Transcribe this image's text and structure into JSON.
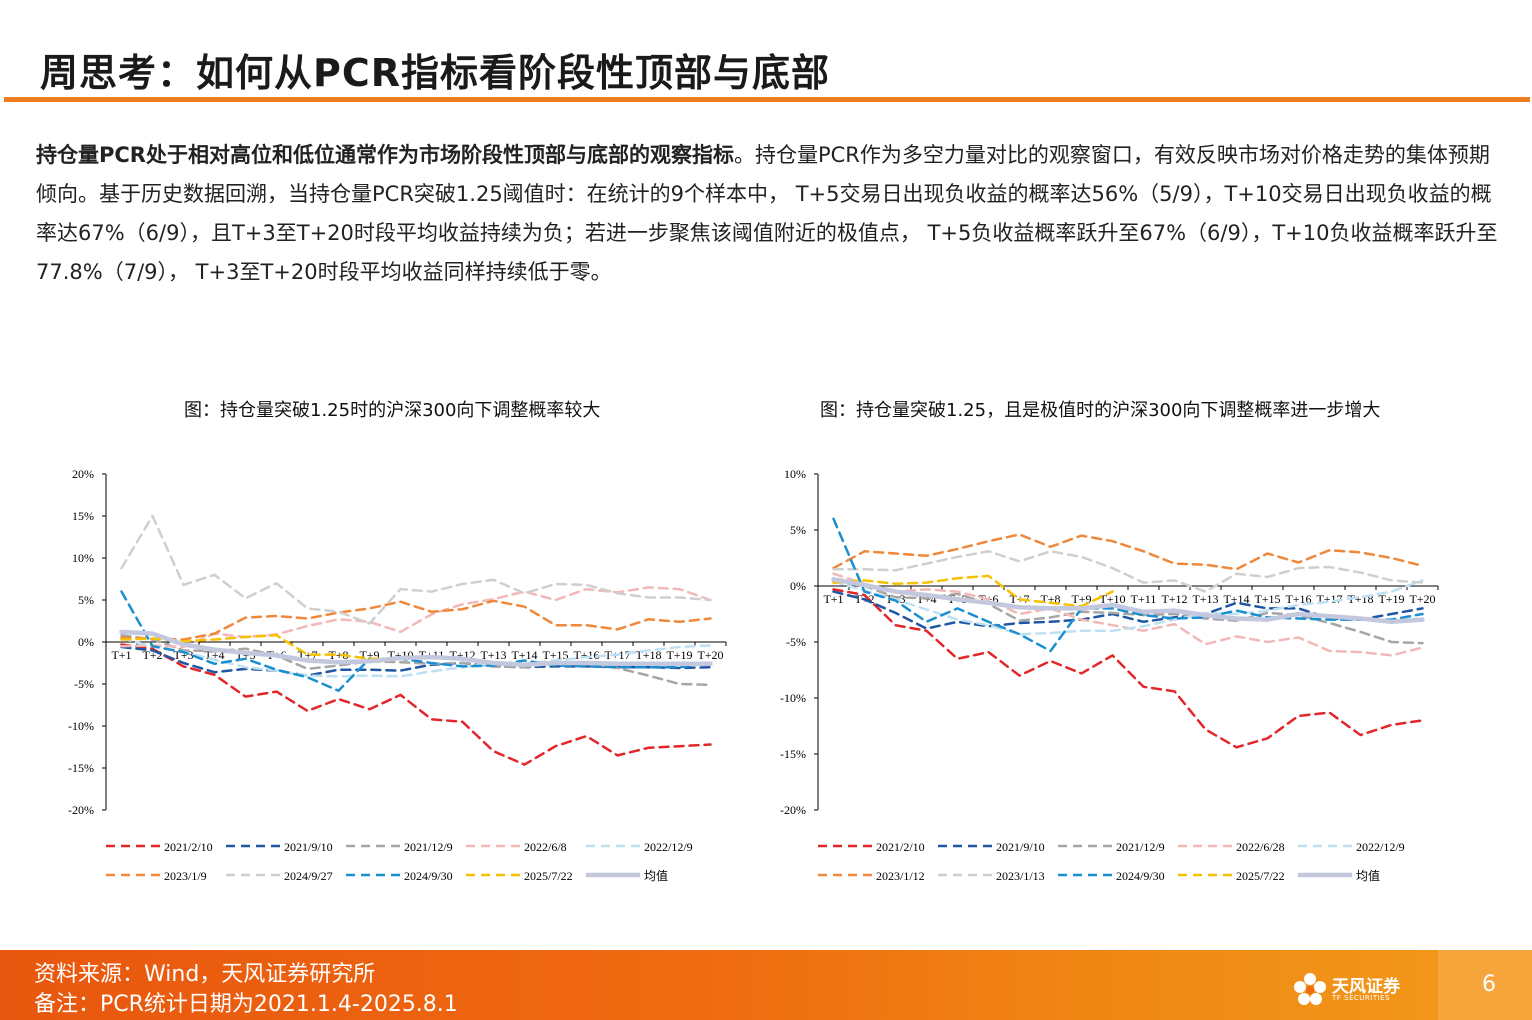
{
  "title": "周思考：如何从PCR指标看阶段性顶部与底部",
  "paragraph": {
    "bold": "持仓量PCR处于相对高位和低位通常作为市场阶段性顶部与底部的观察指标",
    "rest": "。持仓量PCR作为多空力量对比的观察窗口，有效反映市场对价格走势的集体预期倾向。基于历史数据回溯，当持仓量PCR突破1.25阈值时：在统计的9个样本中，  T+5交易日出现负收益的概率达56%（5/9），T+10交易日出现负收益的概率达67%（6/9），且T+3至T+20时段平均收益持续为负；若进一步聚焦该阈值附近的极值点，  T+5负收益概率跃升至67%（6/9），T+10负收益概率跃升至77.8%（7/9），  T+3至T+20时段平均收益同样持续低于零。"
  },
  "footer": {
    "source": "资料来源：Wind，天风证券研究所",
    "note": "备注：PCR统计日期为2021.1.4-2025.8.1",
    "logo_text": "天风证券",
    "logo_sub": "TF SECURITIES",
    "page": "6"
  },
  "chart_data": [
    {
      "type": "line",
      "title": "图：持仓量突破1.25时的沪深300向下调整概率较大",
      "categories": [
        "T+1",
        "T+2",
        "T+3",
        "T+4",
        "T+5",
        "T+6",
        "T+7",
        "T+8",
        "T+9",
        "T+10",
        "T+11",
        "T+12",
        "T+13",
        "T+14",
        "T+15",
        "T+16",
        "T+17",
        "T+18",
        "T+19",
        "T+20"
      ],
      "ylim": [
        -20,
        20
      ],
      "yticks": [
        20,
        15,
        10,
        5,
        0,
        -5,
        -10,
        -15,
        -20
      ],
      "ytick_labels": [
        "20%",
        "15%",
        "10%",
        "5%",
        "0%",
        "-5%",
        "-10%",
        "-15%",
        "-20%"
      ],
      "series": [
        {
          "name": "2021/2/10",
          "color": "#e2262a",
          "dash": "dash",
          "values": [
            -0.3,
            -0.8,
            -2.9,
            -3.9,
            -6.5,
            -5.9,
            -8.2,
            -6.8,
            -8.0,
            -6.3,
            -9.2,
            -9.5,
            -13.0,
            -14.6,
            -12.4,
            -11.2,
            -13.5,
            -12.6,
            -12.4,
            -12.2
          ]
        },
        {
          "name": "2021/9/10",
          "color": "#1f57a4",
          "dash": "dash",
          "values": [
            -0.6,
            -1.0,
            -2.5,
            -3.6,
            -3.2,
            -3.4,
            -4.0,
            -3.3,
            -3.3,
            -3.4,
            -2.7,
            -2.5,
            -2.9,
            -3.0,
            -2.9,
            -2.9,
            -3.0,
            -3.0,
            -3.1,
            -3.0
          ]
        },
        {
          "name": "2021/12/9",
          "color": "#a6a6a6",
          "dash": "dash",
          "values": [
            0.8,
            0.3,
            -1.0,
            -1.1,
            -0.8,
            -1.6,
            -3.2,
            -2.8,
            -2.3,
            -2.4,
            -2.6,
            -2.5,
            -2.9,
            -3.0,
            -2.5,
            -2.6,
            -3.1,
            -4.0,
            -5.0,
            -5.1
          ]
        },
        {
          "name": "2022/6/8",
          "color": "#f2b8b8",
          "dash": "dash",
          "values": [
            -0.5,
            -0.4,
            -0.6,
            1.0,
            0.6,
            0.9,
            1.9,
            2.7,
            2.4,
            1.2,
            3.3,
            4.5,
            5.1,
            6.0,
            5.0,
            6.3,
            5.9,
            6.5,
            6.3,
            5.0
          ]
        },
        {
          "name": "2022/12/9",
          "color": "#bfe0f2",
          "dash": "dash",
          "values": [
            0.4,
            -0.5,
            -1.2,
            -2.1,
            -3.0,
            -3.4,
            -4.0,
            -4.1,
            -4.0,
            -4.1,
            -3.5,
            -3.0,
            -2.5,
            -2.6,
            -2.2,
            -1.8,
            -1.5,
            -1.0,
            -0.6,
            -0.4
          ]
        },
        {
          "name": "2023/1/9",
          "color": "#f0883c",
          "dash": "dash",
          "values": [
            0.5,
            0.4,
            0.3,
            1.0,
            2.9,
            3.1,
            2.8,
            3.5,
            4.0,
            4.8,
            3.6,
            3.9,
            4.9,
            4.2,
            2.0,
            2.0,
            1.5,
            2.7,
            2.4,
            2.8
          ]
        },
        {
          "name": "2024/9/27",
          "color": "#cfcfcf",
          "dash": "dash",
          "values": [
            8.8,
            15.0,
            6.8,
            8.0,
            5.2,
            7.0,
            4.0,
            3.6,
            2.2,
            6.3,
            6.0,
            6.9,
            7.4,
            5.8,
            6.9,
            6.8,
            5.8,
            5.3,
            5.3,
            5.0
          ]
        },
        {
          "name": "2024/9/30",
          "color": "#1a8fd0",
          "dash": "dash",
          "values": [
            6.0,
            -0.5,
            -1.2,
            -2.6,
            -2.0,
            -3.3,
            -4.2,
            -5.8,
            -2.0,
            -2.0,
            -2.5,
            -2.9,
            -2.8,
            -2.2,
            -2.8,
            -2.9,
            -3.0,
            -3.0,
            -3.0,
            -2.5
          ]
        },
        {
          "name": "2025/7/22",
          "color": "#f6c100",
          "dash": "dash",
          "values": [
            0.3,
            0.4,
            0.1,
            0.3,
            0.6,
            0.8,
            -1.5,
            -1.5,
            -2.0,
            -2.0,
            null,
            null,
            null,
            null,
            null,
            null,
            null,
            null,
            null,
            null
          ]
        },
        {
          "name": "均值",
          "color": "#c3c8de",
          "dash": "solid",
          "values": [
            1.2,
            1.0,
            -0.3,
            -0.9,
            -1.3,
            -1.6,
            -2.2,
            -2.4,
            -2.3,
            -1.9,
            -1.8,
            -2.0,
            -2.5,
            -2.7,
            -2.5,
            -2.5,
            -2.6,
            -2.6,
            -2.6,
            -2.6
          ]
        }
      ]
    },
    {
      "type": "line",
      "title": "图：持仓量突破1.25，且是极值时的沪深300向下调整概率进一步增大",
      "categories": [
        "T+1",
        "T+2",
        "T+3",
        "T+4",
        "T+5",
        "T+6",
        "T+7",
        "T+8",
        "T+9",
        "T+10",
        "T+11",
        "T+12",
        "T+13",
        "T+14",
        "T+15",
        "T+16",
        "T+17",
        "T+18",
        "T+19",
        "T+20"
      ],
      "ylim": [
        -20,
        10
      ],
      "yticks": [
        10,
        5,
        0,
        -5,
        -10,
        -15,
        -20
      ],
      "ytick_labels": [
        "10%",
        "5%",
        "0%",
        "-5%",
        "-10%",
        "-15%",
        "-20%"
      ],
      "series": [
        {
          "name": "2021/2/10",
          "color": "#e2262a",
          "dash": "dash",
          "values": [
            -0.3,
            -0.8,
            -3.5,
            -4.0,
            -6.5,
            -5.9,
            -8.0,
            -6.7,
            -7.8,
            -6.2,
            -9.0,
            -9.4,
            -12.8,
            -14.4,
            -13.6,
            -11.6,
            -11.3,
            -13.3,
            -12.4,
            -12.0
          ]
        },
        {
          "name": "2021/9/10",
          "color": "#1f57a4",
          "dash": "dash",
          "values": [
            -0.5,
            -1.2,
            -2.4,
            -3.8,
            -3.2,
            -3.6,
            -3.3,
            -3.2,
            -3.0,
            -2.5,
            -3.2,
            -2.8,
            -2.5,
            -1.5,
            -2.0,
            -2.0,
            -2.9,
            -3.0,
            -2.5,
            -2.0
          ]
        },
        {
          "name": "2021/12/9",
          "color": "#a6a6a6",
          "dash": "dash",
          "values": [
            0.4,
            0.0,
            -1.0,
            -1.1,
            -0.7,
            -1.6,
            -3.1,
            -2.8,
            -2.3,
            -2.4,
            -2.6,
            -2.5,
            -2.9,
            -3.1,
            -2.4,
            -2.6,
            -3.3,
            -4.1,
            -5.0,
            -5.1
          ]
        },
        {
          "name": "2022/6/28",
          "color": "#f2b8b8",
          "dash": "dash",
          "values": [
            1.1,
            0.2,
            -0.5,
            -0.3,
            -0.5,
            -1.2,
            -2.5,
            -2.0,
            -3.0,
            -3.5,
            -4.0,
            -3.4,
            -5.2,
            -4.5,
            -5.0,
            -4.6,
            -5.8,
            -5.9,
            -6.2,
            -5.5
          ]
        },
        {
          "name": "2022/12/9",
          "color": "#bfe0f2",
          "dash": "dash",
          "values": [
            0.4,
            -0.4,
            -1.2,
            -2.1,
            -3.0,
            -3.5,
            -4.3,
            -4.2,
            -4.0,
            -4.0,
            -3.6,
            -3.0,
            -2.4,
            -2.5,
            -2.2,
            -1.7,
            -1.4,
            -1.0,
            -0.5,
            0.5
          ]
        },
        {
          "name": "2023/1/12",
          "color": "#f0883c",
          "dash": "dash",
          "values": [
            1.6,
            3.1,
            2.9,
            2.7,
            3.3,
            4.0,
            4.6,
            3.5,
            4.5,
            4.0,
            3.1,
            2.0,
            1.9,
            1.5,
            2.9,
            2.1,
            3.2,
            3.0,
            2.5,
            1.8
          ]
        },
        {
          "name": "2023/1/13",
          "color": "#cfcfcf",
          "dash": "dash",
          "values": [
            1.5,
            1.5,
            1.4,
            2.0,
            2.6,
            3.1,
            2.2,
            3.1,
            2.6,
            1.6,
            0.3,
            0.5,
            -0.5,
            1.1,
            0.8,
            1.6,
            1.7,
            1.2,
            0.5,
            0.3
          ]
        },
        {
          "name": "2024/9/30",
          "color": "#1a8fd0",
          "dash": "dash",
          "values": [
            6.0,
            -0.5,
            -1.3,
            -3.2,
            -2.0,
            -3.2,
            -4.3,
            -5.8,
            -2.0,
            -2.0,
            -2.6,
            -2.9,
            -2.8,
            -2.2,
            -2.8,
            -2.9,
            -3.0,
            -3.0,
            -3.0,
            -2.5
          ]
        },
        {
          "name": "2025/7/22",
          "color": "#f6c100",
          "dash": "dash",
          "values": [
            0.3,
            0.5,
            0.2,
            0.3,
            0.7,
            0.9,
            -1.2,
            -1.5,
            -1.8,
            -0.5,
            null,
            null,
            null,
            null,
            null,
            null,
            null,
            null,
            null,
            null
          ]
        },
        {
          "name": "均值",
          "color": "#c3c8de",
          "dash": "solid",
          "values": [
            0.6,
            0.1,
            -0.5,
            -0.8,
            -1.2,
            -1.5,
            -1.9,
            -2.0,
            -2.0,
            -1.7,
            -2.3,
            -2.2,
            -2.6,
            -2.9,
            -3.0,
            -2.5,
            -2.7,
            -2.9,
            -3.2,
            -3.0
          ]
        }
      ]
    }
  ]
}
